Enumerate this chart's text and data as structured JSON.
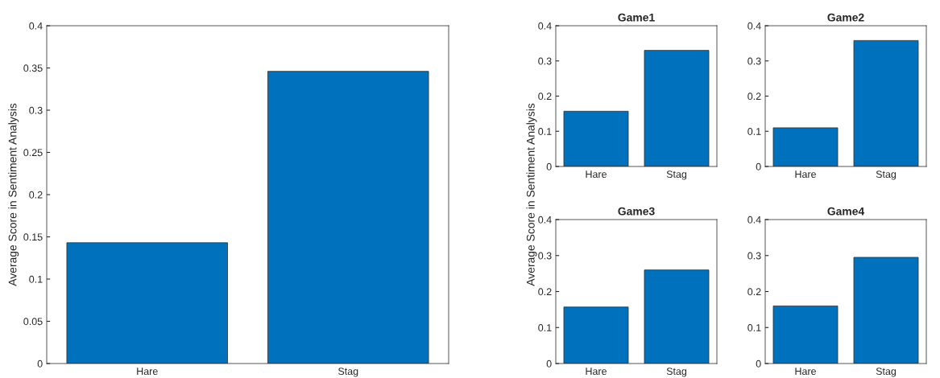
{
  "chart_data": [
    {
      "type": "bar",
      "ylabel": "Average Score in Sentiment Analysis",
      "categories": [
        "Hare",
        "Stag"
      ],
      "values": [
        0.143,
        0.346
      ],
      "color": "#0072bd",
      "ylim": [
        0,
        0.4
      ],
      "yticks": [
        0,
        0.05,
        0.1,
        0.15,
        0.2,
        0.25,
        0.3,
        0.35,
        0.4
      ],
      "grid": false
    },
    {
      "type": "bar",
      "title": "Game1",
      "ylabel": "Average Score in Sentiment Analysis",
      "categories": [
        "Hare",
        "Stag"
      ],
      "values": [
        0.157,
        0.33
      ],
      "color": "#0072bd",
      "ylim": [
        0,
        0.4
      ],
      "yticks": [
        0,
        0.1,
        0.2,
        0.3,
        0.4
      ],
      "grid": false
    },
    {
      "type": "bar",
      "title": "Game2",
      "categories": [
        "Hare",
        "Stag"
      ],
      "values": [
        0.11,
        0.358
      ],
      "color": "#0072bd",
      "ylim": [
        0,
        0.4
      ],
      "yticks": [
        0,
        0.1,
        0.2,
        0.3,
        0.4
      ],
      "grid": false
    },
    {
      "type": "bar",
      "title": "Game3",
      "categories": [
        "Hare",
        "Stag"
      ],
      "values": [
        0.157,
        0.26
      ],
      "color": "#0072bd",
      "ylim": [
        0,
        0.4
      ],
      "yticks": [
        0,
        0.1,
        0.2,
        0.3,
        0.4
      ],
      "grid": false
    },
    {
      "type": "bar",
      "title": "Game4",
      "categories": [
        "Hare",
        "Stag"
      ],
      "values": [
        0.16,
        0.295
      ],
      "color": "#0072bd",
      "ylim": [
        0,
        0.4
      ],
      "yticks": [
        0,
        0.1,
        0.2,
        0.3,
        0.4
      ],
      "grid": false
    }
  ]
}
